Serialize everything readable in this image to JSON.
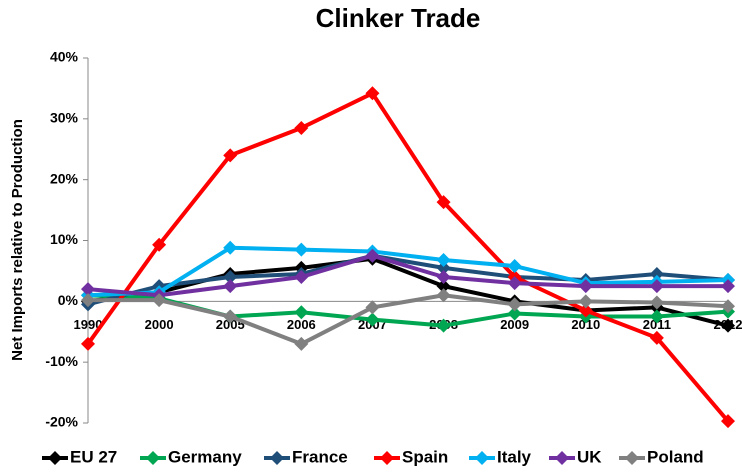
{
  "chart_data": {
    "type": "line",
    "title": "Clinker Trade",
    "ylabel": "Net Imports relative to Production",
    "categories": [
      "1990",
      "2000",
      "2005",
      "2006",
      "2007",
      "2008",
      "2009",
      "2010",
      "2011",
      "2012"
    ],
    "ylim": [
      -20,
      40
    ],
    "yticks": [
      {
        "value": -20,
        "label": "-20%"
      },
      {
        "value": -10,
        "label": "-10%"
      },
      {
        "value": 0,
        "label": "0%"
      },
      {
        "value": 10,
        "label": "10%"
      },
      {
        "value": 20,
        "label": "20%"
      },
      {
        "value": 30,
        "label": "30%"
      },
      {
        "value": 40,
        "label": "40%"
      }
    ],
    "legend": "bottom",
    "series": [
      {
        "name": "EU 27",
        "color": "#000000",
        "values": [
          0,
          1.5,
          4.5,
          5.5,
          7,
          2.5,
          0,
          -1.5,
          -1,
          -4
        ]
      },
      {
        "name": "Germany",
        "color": "#00a651",
        "values": [
          1,
          0.5,
          -2.5,
          -1.8,
          -3,
          -4,
          -2,
          -2.5,
          -2.5,
          -1.7
        ]
      },
      {
        "name": "France",
        "color": "#1f4e79",
        "values": [
          -0.5,
          2.5,
          4,
          4.5,
          7.5,
          5.5,
          4,
          3.5,
          4.5,
          3.5
        ]
      },
      {
        "name": "Spain",
        "color": "#ff0000",
        "values": [
          -7,
          9.3,
          24,
          28.5,
          34.2,
          16.3,
          4,
          -1.5,
          -6,
          -19.7
        ]
      },
      {
        "name": "Italy",
        "color": "#00b0f0",
        "values": [
          1,
          1.5,
          8.8,
          8.5,
          8.2,
          6.8,
          5.8,
          3,
          3.2,
          3.5
        ]
      },
      {
        "name": "UK",
        "color": "#7030a0",
        "values": [
          2,
          1,
          2.5,
          4,
          7.5,
          4,
          3,
          2.5,
          2.5,
          2.5
        ]
      },
      {
        "name": "Poland",
        "color": "#808080",
        "values": [
          0.2,
          0.2,
          -2.5,
          -7,
          -1,
          1,
          -0.5,
          0,
          -0.2,
          -0.8
        ]
      }
    ]
  }
}
